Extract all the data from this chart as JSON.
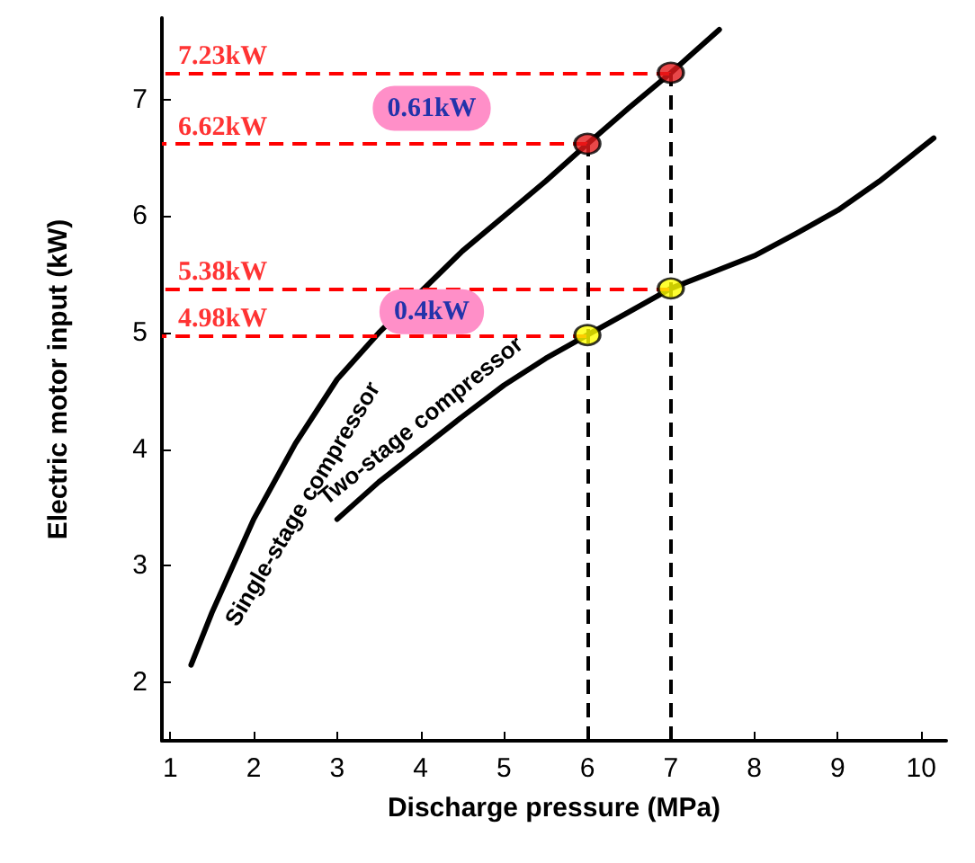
{
  "chart_data": {
    "type": "line",
    "xlabel": "Discharge pressure (MPa)",
    "ylabel": "Electric motor input (kW)",
    "xlim": [
      0.9,
      10.3
    ],
    "xticks": [
      1,
      2,
      3,
      4,
      5,
      6,
      7,
      8,
      9,
      10
    ],
    "ylim": [
      1.5,
      7.7
    ],
    "yticks": [
      2,
      3,
      4,
      5,
      6,
      7
    ],
    "grid": false,
    "legend": false,
    "marker": "none",
    "line_style": "solid",
    "series": [
      {
        "name": "Single-stage compressor",
        "color": "#000000",
        "x": [
          1.25,
          1.5,
          2,
          2.5,
          3,
          3.5,
          4,
          4.5,
          5,
          5.5,
          6,
          6.5,
          7,
          7.58
        ],
        "values": [
          2.15,
          2.6,
          3.4,
          4.05,
          4.6,
          5.0,
          5.35,
          5.7,
          6.0,
          6.3,
          6.62,
          6.93,
          7.23,
          7.6
        ]
      },
      {
        "name": "Two-stage compressor",
        "color": "#000000",
        "x": [
          3,
          3.5,
          4,
          4.5,
          5,
          5.5,
          6,
          6.5,
          7,
          7.5,
          8,
          8.5,
          9,
          9.5,
          10.15
        ],
        "values": [
          3.4,
          3.72,
          4.0,
          4.28,
          4.55,
          4.78,
          4.98,
          5.18,
          5.38,
          5.52,
          5.66,
          5.85,
          6.05,
          6.3,
          6.67
        ]
      },
      {
        "type": "scatter",
        "marker": "circle",
        "color": "#e31a1c",
        "x": [
          6,
          7
        ],
        "values": [
          6.62,
          7.23
        ]
      },
      {
        "type": "scatter",
        "marker": "circle",
        "color": "#ffff00",
        "x": [
          6,
          7
        ],
        "values": [
          4.98,
          5.38
        ]
      }
    ],
    "ref_lines": [
      {
        "axis": "y",
        "value": 7.23,
        "label": "7.23kW",
        "color": "#ff0000",
        "line_style": "dashed"
      },
      {
        "axis": "y",
        "value": 6.62,
        "label": "6.62kW",
        "color": "#ff0000",
        "line_style": "dashed"
      },
      {
        "axis": "y",
        "value": 5.38,
        "label": "5.38kW",
        "color": "#ff0000",
        "line_style": "dashed"
      },
      {
        "axis": "y",
        "value": 4.98,
        "label": "4.98kW",
        "color": "#ff0000",
        "line_style": "dashed"
      },
      {
        "axis": "x",
        "value": 6,
        "label": null,
        "color": "#000000",
        "line_style": "dashed"
      },
      {
        "axis": "x",
        "value": 7,
        "label": null,
        "color": "#000000",
        "line_style": "dashed"
      }
    ],
    "annotations": [
      "0.61kW",
      "0.4kW"
    ]
  }
}
